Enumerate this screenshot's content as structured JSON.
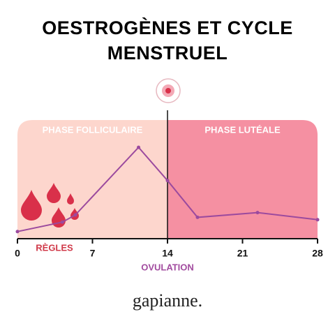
{
  "chart_data": {
    "type": "line",
    "title": "OESTROGÈNES ET CYCLE MENSTRUEL",
    "x": [
      0,
      4.2,
      5.4,
      11.3,
      14,
      16.8,
      22.4,
      28
    ],
    "values": [
      6,
      14,
      20,
      77,
      49,
      18,
      22,
      16
    ],
    "color": "#9b4a9e",
    "xlim": [
      0,
      28
    ],
    "xticks": [
      0,
      7,
      14,
      21,
      28
    ],
    "ylim": [
      0,
      100
    ],
    "phases": [
      {
        "name": "PHASE FOLLICULAIRE",
        "start": 0,
        "end": 14,
        "color": "#fdd6cd"
      },
      {
        "name": "PHASE LUTÉALE",
        "start": 14,
        "end": 28,
        "color": "#f590a2"
      }
    ],
    "ovulation": {
      "label": "OVULATION",
      "day": 14
    },
    "period_label": "RÈGLES",
    "brand": "gapianne."
  }
}
